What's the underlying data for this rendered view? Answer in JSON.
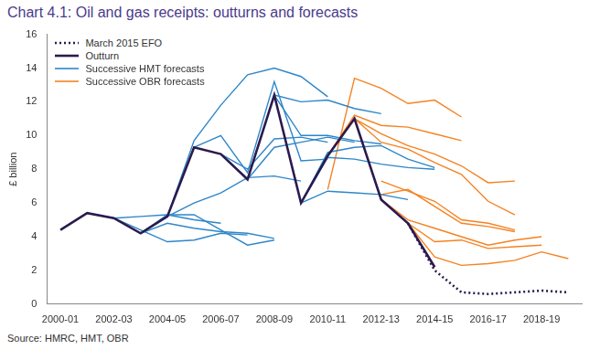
{
  "chart_data": {
    "type": "line",
    "title": "Chart 4.1: Oil and gas receipts: outturns and forecasts",
    "source": "Source: HMRC, HMT, OBR",
    "ylabel": "£ billion",
    "categories": [
      "2000-01",
      null,
      "2002-03",
      null,
      "2004-05",
      null,
      "2006-07",
      null,
      "2008-09",
      null,
      "2010-11",
      null,
      "2012-13",
      null,
      "2014-15",
      null,
      "2016-17",
      null,
      "2018-19",
      null
    ],
    "ylim": [
      0,
      16
    ],
    "yticks": [
      0,
      2,
      4,
      6,
      8,
      10,
      12,
      14,
      16
    ],
    "grid": false,
    "legend": "top-left",
    "series": [
      {
        "name": "March 2015 EFO",
        "color": "#2b1a4e",
        "line_style": "dotted",
        "values": [
          null,
          null,
          null,
          null,
          null,
          null,
          null,
          null,
          null,
          null,
          null,
          null,
          null,
          4.8,
          2.0,
          0.7,
          0.6,
          0.7,
          0.8,
          0.7
        ]
      },
      {
        "name": "Outturn",
        "color": "#2b1a4e",
        "line_style": "solid",
        "values": [
          4.4,
          5.4,
          5.1,
          4.2,
          5.2,
          9.3,
          8.9,
          7.4,
          12.4,
          6.0,
          8.8,
          11.0,
          6.2,
          4.8,
          2.2,
          null,
          null,
          null,
          null,
          null
        ]
      },
      {
        "name": "Successive HMT forecasts",
        "color": "#2e86c8",
        "line_style": "solid",
        "values": [
          null,
          5.4,
          5.1,
          5.2,
          5.3,
          5.0,
          4.8,
          null,
          null,
          null,
          null,
          null,
          null,
          null,
          null,
          null,
          null,
          null,
          null,
          null
        ]
      },
      {
        "name": "Successive HMT forecasts",
        "color": "#2e86c8",
        "line_style": "solid",
        "values": [
          null,
          null,
          5.1,
          4.4,
          3.7,
          3.8,
          4.2,
          4.1,
          null,
          null,
          null,
          null,
          null,
          null,
          null,
          null,
          null,
          null,
          null,
          null
        ]
      },
      {
        "name": "Successive HMT forecasts",
        "color": "#2e86c8",
        "line_style": "solid",
        "values": [
          null,
          null,
          null,
          4.2,
          4.8,
          4.5,
          4.3,
          4.2,
          3.9,
          null,
          null,
          null,
          null,
          null,
          null,
          null,
          null,
          null,
          null,
          null
        ]
      },
      {
        "name": "Successive HMT forecasts",
        "color": "#2e86c8",
        "line_style": "solid",
        "values": [
          null,
          null,
          null,
          4.2,
          5.3,
          5.3,
          4.4,
          3.5,
          3.8,
          null,
          null,
          null,
          null,
          null,
          null,
          null,
          null,
          null,
          null,
          null
        ]
      },
      {
        "name": "Successive HMT forecasts",
        "color": "#2e86c8",
        "line_style": "solid",
        "values": [
          null,
          null,
          null,
          null,
          5.2,
          9.7,
          11.8,
          13.6,
          14.0,
          13.5,
          12.3,
          null,
          null,
          null,
          null,
          null,
          null,
          null,
          null,
          null
        ]
      },
      {
        "name": "Successive HMT forecasts",
        "color": "#2e86c8",
        "line_style": "solid",
        "values": [
          null,
          null,
          null,
          null,
          null,
          9.3,
          10.0,
          7.8,
          13.2,
          8.5,
          8.6,
          null,
          null,
          null,
          null,
          null,
          null,
          null,
          null,
          null
        ]
      },
      {
        "name": "Successive HMT forecasts",
        "color": "#2e86c8",
        "line_style": "solid",
        "values": [
          null,
          null,
          null,
          null,
          5.2,
          6.0,
          6.6,
          7.5,
          7.6,
          7.3,
          null,
          null,
          null,
          null,
          null,
          null,
          null,
          null,
          null,
          null
        ]
      },
      {
        "name": "Successive HMT forecasts",
        "color": "#2e86c8",
        "line_style": "solid",
        "values": [
          null,
          null,
          null,
          null,
          null,
          null,
          8.9,
          8.0,
          9.8,
          9.9,
          9.6,
          null,
          null,
          null,
          null,
          null,
          null,
          null,
          null,
          null
        ]
      },
      {
        "name": "Successive HMT forecasts",
        "color": "#2e86c8",
        "line_style": "solid",
        "values": [
          null,
          null,
          null,
          null,
          null,
          null,
          null,
          7.4,
          9.3,
          9.6,
          9.9,
          9.6,
          null,
          null,
          null,
          null,
          null,
          null,
          null,
          null
        ]
      },
      {
        "name": "Successive HMT forecasts",
        "color": "#2e86c8",
        "line_style": "solid",
        "values": [
          null,
          null,
          null,
          null,
          null,
          null,
          null,
          null,
          12.4,
          12.0,
          12.1,
          11.6,
          11.3,
          null,
          null,
          null,
          null,
          null,
          null,
          null
        ]
      },
      {
        "name": "Successive HMT forecasts",
        "color": "#2e86c8",
        "line_style": "solid",
        "values": [
          null,
          null,
          null,
          null,
          null,
          null,
          null,
          null,
          12.4,
          10.0,
          10.0,
          9.7,
          9.5,
          null,
          null,
          null,
          null,
          null,
          null,
          null
        ]
      },
      {
        "name": "Successive HMT forecasts",
        "color": "#2e86c8",
        "line_style": "solid",
        "values": [
          null,
          null,
          null,
          null,
          null,
          null,
          null,
          null,
          null,
          6.0,
          8.7,
          8.6,
          8.3,
          8.1,
          8.0,
          null,
          null,
          null,
          null,
          null
        ]
      },
      {
        "name": "Successive HMT forecasts",
        "color": "#2e86c8",
        "line_style": "solid",
        "values": [
          null,
          null,
          null,
          null,
          null,
          null,
          null,
          null,
          null,
          6.0,
          6.7,
          6.6,
          6.5,
          6.2,
          null,
          null,
          null,
          null,
          null,
          null
        ]
      },
      {
        "name": "Successive HMT forecasts",
        "color": "#2e86c8",
        "line_style": "solid",
        "values": [
          null,
          null,
          null,
          null,
          null,
          null,
          null,
          null,
          null,
          6.0,
          9.0,
          9.3,
          9.4,
          8.6,
          8.1,
          null,
          null,
          null,
          null,
          null
        ]
      },
      {
        "name": "Successive OBR forecasts",
        "color": "#f58220",
        "line_style": "solid",
        "values": [
          null,
          null,
          null,
          null,
          null,
          null,
          null,
          null,
          null,
          null,
          6.8,
          13.4,
          12.8,
          11.9,
          12.1,
          11.1,
          null,
          null,
          null,
          null
        ]
      },
      {
        "name": "Successive OBR forecasts",
        "color": "#f58220",
        "line_style": "solid",
        "values": [
          null,
          null,
          null,
          null,
          null,
          null,
          null,
          null,
          null,
          null,
          8.8,
          11.2,
          10.6,
          10.5,
          10.1,
          9.7,
          null,
          null,
          null,
          null
        ]
      },
      {
        "name": "Successive OBR forecasts",
        "color": "#f58220",
        "line_style": "solid",
        "values": [
          null,
          null,
          null,
          null,
          null,
          null,
          null,
          null,
          null,
          null,
          null,
          11.0,
          10.1,
          9.4,
          8.9,
          8.2,
          7.2,
          7.3,
          null,
          null
        ]
      },
      {
        "name": "Successive OBR forecasts",
        "color": "#f58220",
        "line_style": "solid",
        "values": [
          null,
          null,
          null,
          null,
          null,
          null,
          null,
          null,
          null,
          null,
          null,
          11.0,
          9.6,
          9.2,
          8.4,
          7.7,
          6.1,
          5.3,
          null,
          null
        ]
      },
      {
        "name": "Successive OBR forecasts",
        "color": "#f58220",
        "line_style": "solid",
        "values": [
          null,
          null,
          null,
          null,
          null,
          null,
          null,
          null,
          null,
          null,
          null,
          null,
          7.3,
          6.7,
          6.1,
          5.0,
          4.8,
          4.4,
          null,
          null
        ]
      },
      {
        "name": "Successive OBR forecasts",
        "color": "#f58220",
        "line_style": "solid",
        "values": [
          null,
          null,
          null,
          null,
          null,
          null,
          null,
          null,
          null,
          null,
          null,
          null,
          6.5,
          6.8,
          5.8,
          4.8,
          4.6,
          4.3,
          null,
          null
        ]
      },
      {
        "name": "Successive OBR forecasts",
        "color": "#f58220",
        "line_style": "solid",
        "values": [
          null,
          null,
          null,
          null,
          null,
          null,
          null,
          null,
          null,
          null,
          null,
          null,
          6.2,
          5.0,
          4.5,
          4.0,
          3.5,
          3.8,
          4.0,
          null
        ]
      },
      {
        "name": "Successive OBR forecasts",
        "color": "#f58220",
        "line_style": "solid",
        "values": [
          null,
          null,
          null,
          null,
          null,
          null,
          null,
          null,
          null,
          null,
          null,
          null,
          null,
          4.8,
          3.7,
          3.8,
          3.3,
          3.4,
          3.5,
          null
        ]
      },
      {
        "name": "Successive OBR forecasts",
        "color": "#f58220",
        "line_style": "solid",
        "values": [
          null,
          null,
          null,
          null,
          null,
          null,
          null,
          null,
          null,
          null,
          null,
          null,
          null,
          4.8,
          2.8,
          2.3,
          2.4,
          2.6,
          3.1,
          2.7
        ]
      }
    ]
  }
}
